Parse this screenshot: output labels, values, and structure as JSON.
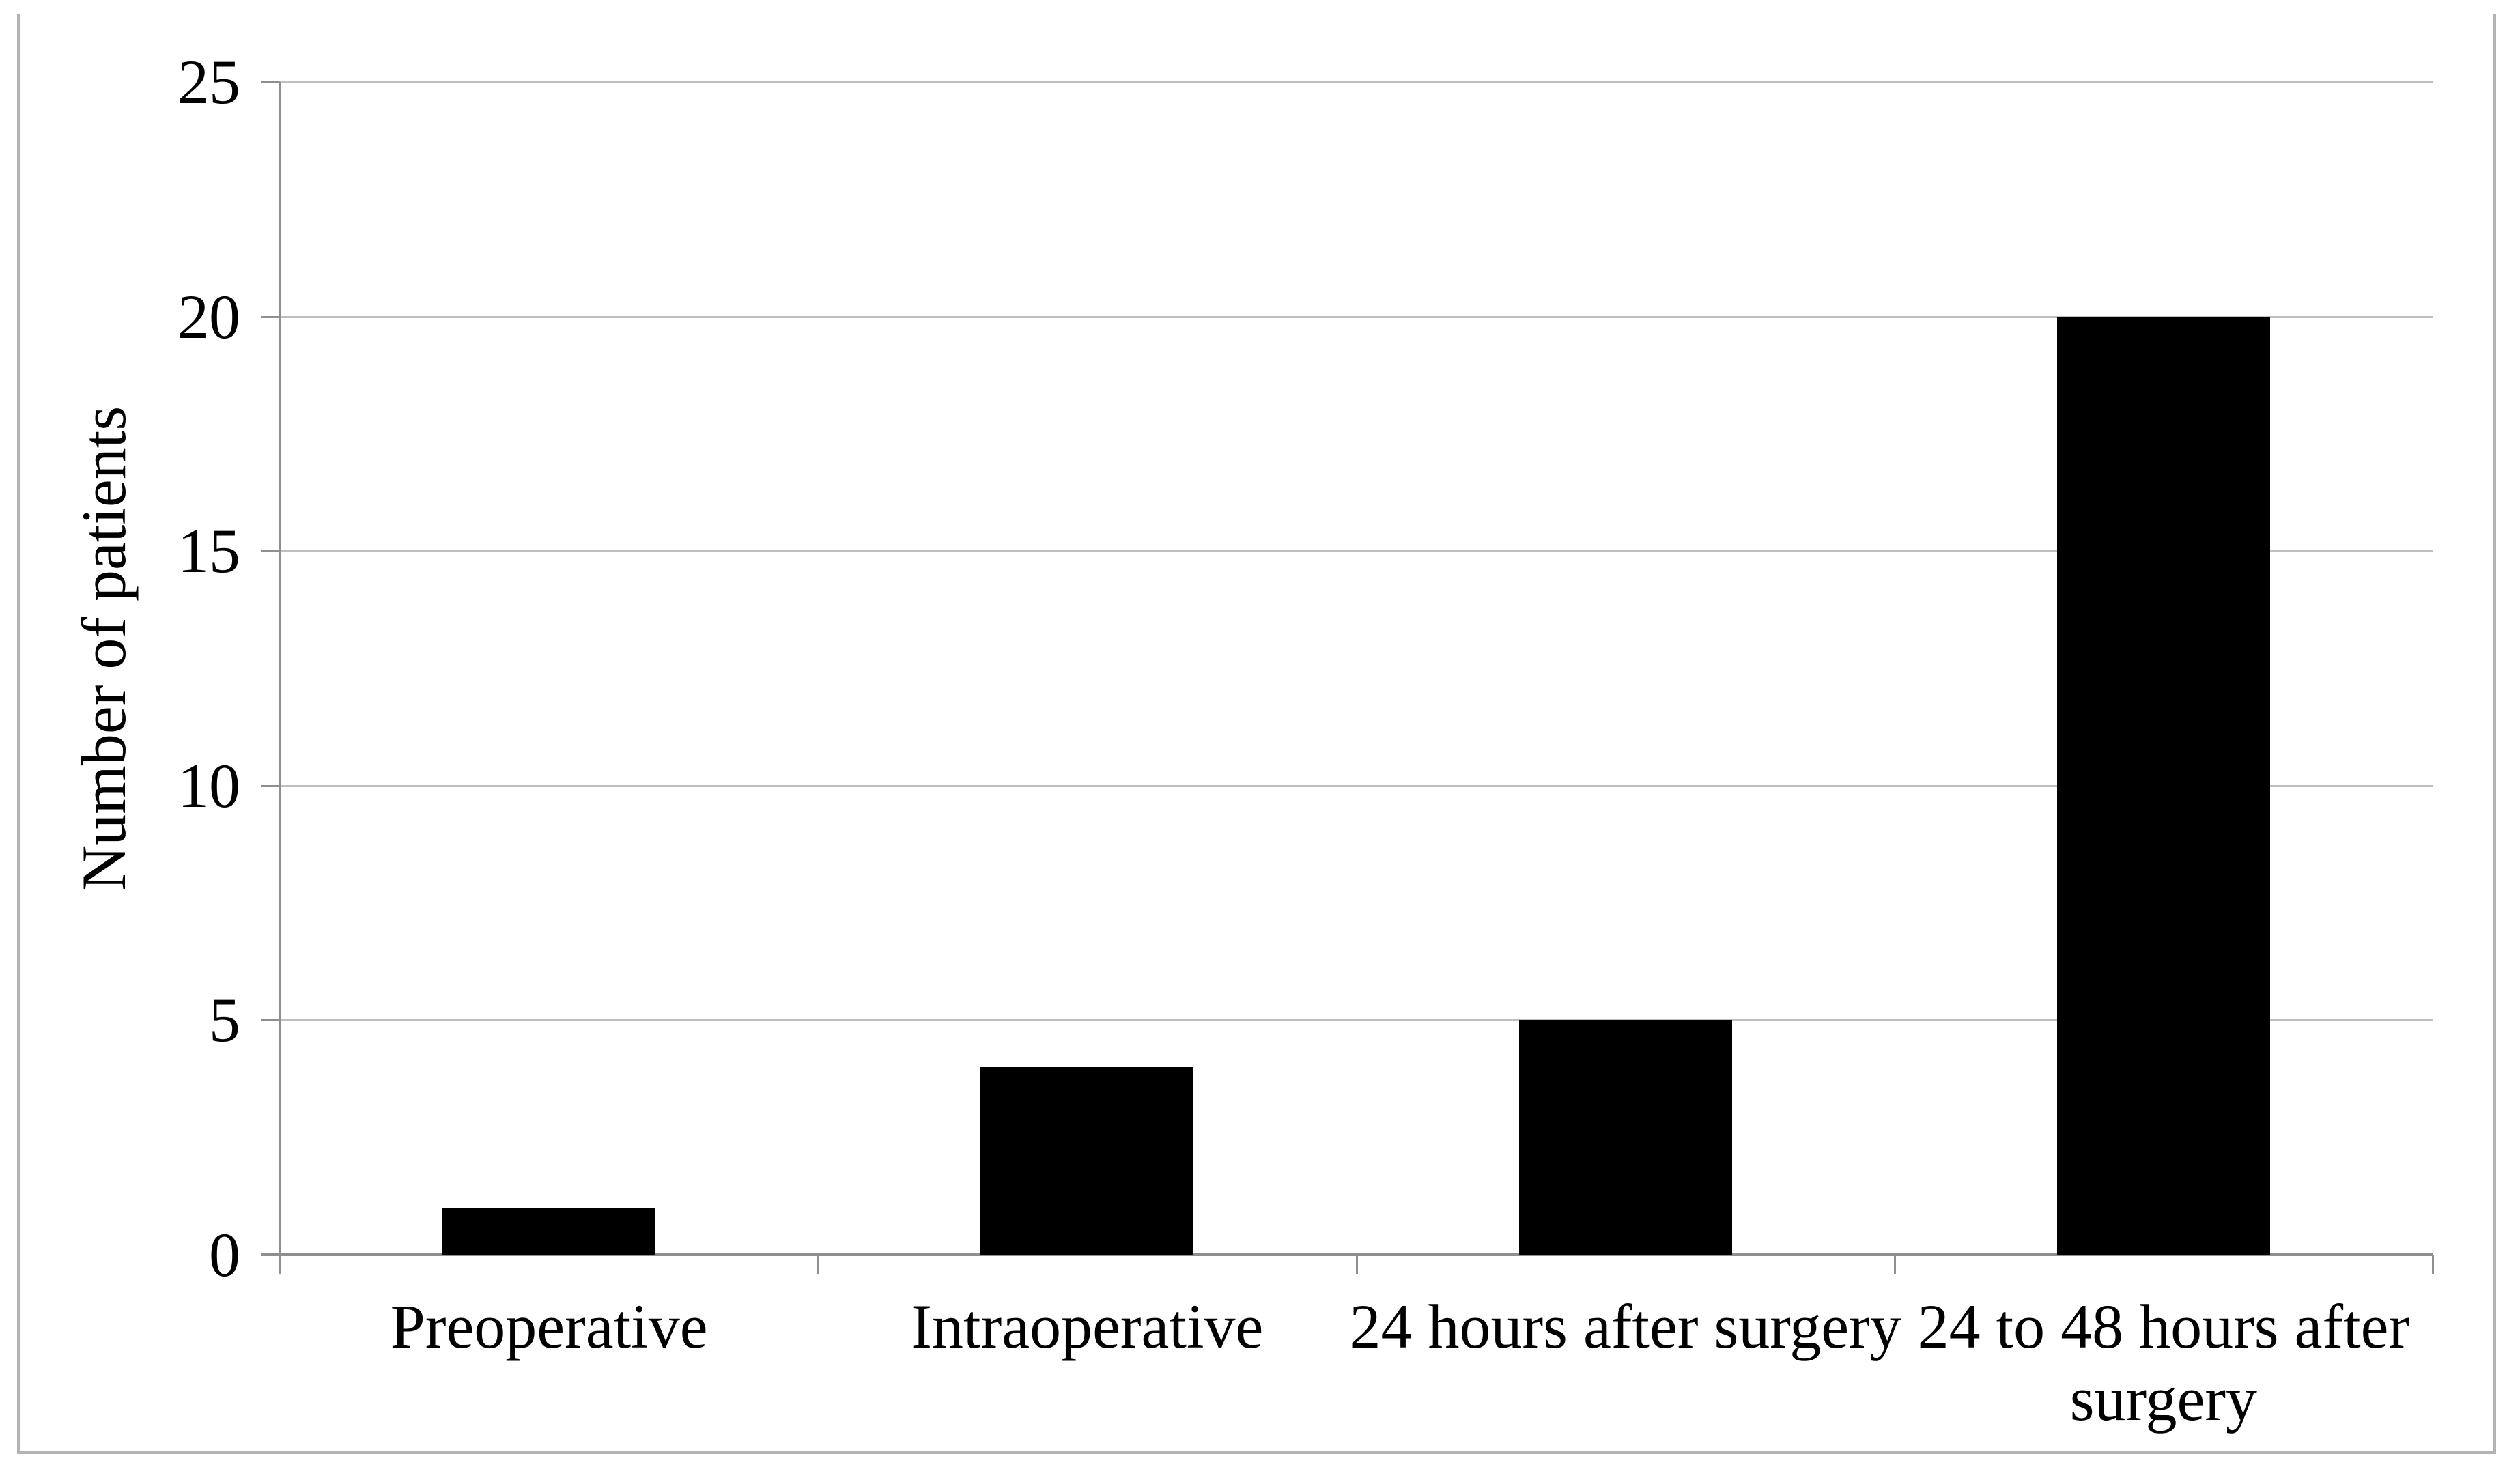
{
  "chart_data": {
    "type": "bar",
    "title": "",
    "categories": [
      "Preoperative",
      "Intraoperative",
      "24 hours after surgery",
      "24 to 48 hours after surgery"
    ],
    "values": [
      1,
      4,
      5,
      20
    ],
    "xlabel": "",
    "ylabel": "Number of patients",
    "ylim": [
      0,
      25
    ],
    "ytick_step": 5,
    "ytick_labels": [
      "0",
      "5",
      "10",
      "15",
      "20",
      "25"
    ],
    "grid": "horizontal",
    "legend": "none",
    "colors": {
      "bar": "#000000",
      "gridline": "#bfbfbf",
      "axis": "#8f8f8f",
      "figure_border": "#b3b3b3",
      "text": "#000000",
      "background": "#ffffff"
    }
  }
}
